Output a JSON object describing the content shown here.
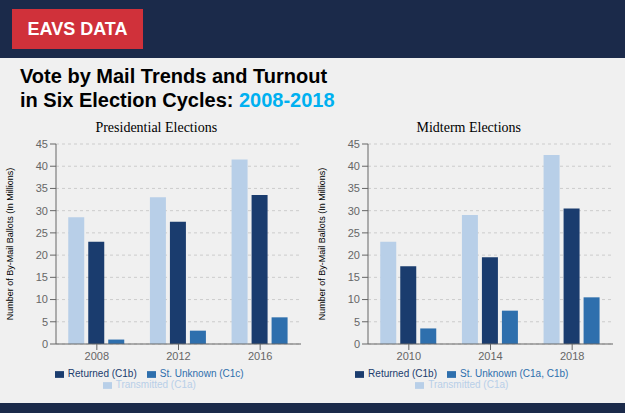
{
  "title": "Vote by Mail Trends and Turnout",
  "subtitle": "in Six Election Cycles: 2008-2018",
  "annotations": [
    "EAVS DATA"
  ],
  "chart_data": [
    {
      "type": "bar",
      "title": "Presidential Elections",
      "y_label": "Number of By-Mail Ballots (In Millions)",
      "categories": [
        "2008",
        "2012",
        "2016"
      ],
      "series": [
        {
          "name": "Transmitted (C1a)",
          "color": "#b8cfe8",
          "values": [
            28.5,
            33.0,
            41.5
          ]
        },
        {
          "name": "Returned (C1b)",
          "color": "#1a3c6e",
          "values": [
            23.0,
            27.5,
            33.5
          ]
        },
        {
          "name": "St. Unknown (C1c)",
          "color": "#2e6fad",
          "values": [
            1.0,
            3.0,
            6.0
          ]
        }
      ],
      "ylim": [
        0,
        45
      ],
      "yticks": [
        0,
        5,
        10,
        15,
        20,
        25,
        30,
        35,
        40,
        45
      ],
      "grid": true,
      "legend": "bottom"
    },
    {
      "type": "bar",
      "title": "Midterm Elections",
      "y_label": "Number of By-Mail Ballots (In Millions)",
      "categories": [
        "2010",
        "2014",
        "2018"
      ],
      "series": [
        {
          "name": "Transmitted (C1a)",
          "color": "#b8cfe8",
          "values": [
            23.0,
            29.0,
            42.5
          ]
        },
        {
          "name": "Returned (C1b)",
          "color": "#1a3c6e",
          "values": [
            17.5,
            19.5,
            30.5
          ]
        },
        {
          "name": "St. Unknown (C1a, C1b)",
          "color": "#2e6fad",
          "values": [
            3.5,
            7.5,
            10.5
          ]
        }
      ],
      "ylim": [
        0,
        45
      ],
      "yticks": [
        0,
        5,
        10,
        15,
        20,
        25,
        30,
        35,
        40,
        45
      ],
      "grid": true,
      "legend": "bottom"
    }
  ]
}
